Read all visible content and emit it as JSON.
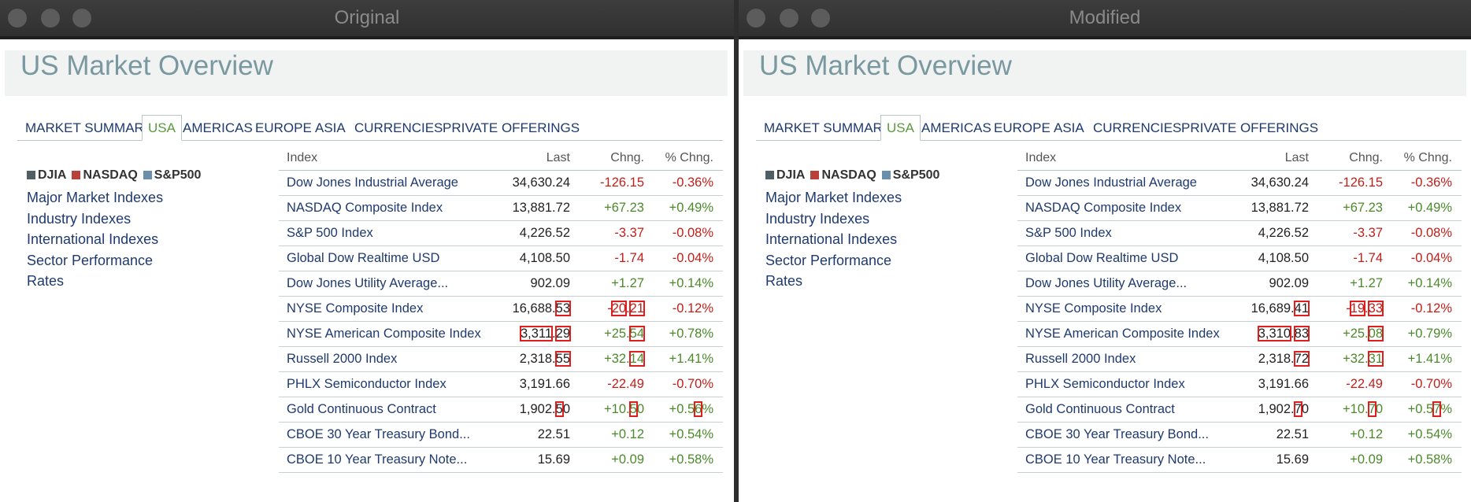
{
  "colors": {
    "accent_green": "#5b9a3c",
    "link_blue": "#1e3a6e",
    "negative_red": "#c0201a",
    "positive_green": "#4a8a2a",
    "diff_box_red": "#e01e1e",
    "djia": "#4f5f64",
    "nasdaq": "#b9413a",
    "sp500": "#6a8faa"
  },
  "panels": [
    {
      "window_title": "Original",
      "page_title": "US Market Overview",
      "tabs": [
        "MARKET SUMMARY",
        "USA",
        "AMERICAS",
        "EUROPE",
        "ASIA",
        "CURRENCIES",
        "PRIVATE OFFERINGS"
      ],
      "legend": [
        "DJIA",
        "NASDAQ",
        "S&P500"
      ],
      "links": [
        "Major Market Indexes",
        "Industry Indexes",
        "International Indexes",
        "Sector Performance",
        "Rates"
      ],
      "columns": {
        "index": "Index",
        "last": "Last",
        "chng": "Chng.",
        "pct": "% Chng."
      },
      "rows": [
        {
          "name": "Dow Jones Industrial Average",
          "last": [
            "34,630.24"
          ],
          "chng": [
            "-126.15"
          ],
          "pct": [
            "-0.36%"
          ],
          "dir": "neg"
        },
        {
          "name": "NASDAQ Composite Index",
          "last": [
            "13,881.72"
          ],
          "chng": [
            "+67.23"
          ],
          "pct": [
            "+0.49%"
          ],
          "dir": "pos"
        },
        {
          "name": "S&P 500 Index",
          "last": [
            "4,226.52"
          ],
          "chng": [
            "-3.37"
          ],
          "pct": [
            "-0.08%"
          ],
          "dir": "neg"
        },
        {
          "name": "Global Dow Realtime USD",
          "last": [
            "4,108.50"
          ],
          "chng": [
            "-1.74"
          ],
          "pct": [
            "-0.04%"
          ],
          "dir": "neg"
        },
        {
          "name": "Dow Jones Utility Average...",
          "last": [
            "902.09"
          ],
          "chng": [
            "+1.27"
          ],
          "pct": [
            "+0.14%"
          ],
          "dir": "pos"
        },
        {
          "name": "NYSE Composite Index",
          "last": [
            "16,68",
            "8.",
            "53"
          ],
          "chng": [
            "-",
            "20",
            ".",
            "21"
          ],
          "pct": [
            "-0.12%"
          ],
          "dir": "neg"
        },
        {
          "name": "NYSE American Composite Index",
          "last": [
            "3,311",
            ".",
            "29"
          ],
          "chng": [
            "+25.",
            "54"
          ],
          "pct": [
            "+0.7",
            "8",
            "%"
          ],
          "dir": "pos"
        },
        {
          "name": "Russell 2000 Index",
          "last": [
            "2,318.",
            "55"
          ],
          "chng": [
            "+32.",
            "14"
          ],
          "pct": [
            "+1.41%"
          ],
          "dir": "pos"
        },
        {
          "name": "PHLX Semiconductor Index",
          "last": [
            "3,191.66"
          ],
          "chng": [
            "-22.49"
          ],
          "pct": [
            "-0.70%"
          ],
          "dir": "neg"
        },
        {
          "name": "Gold Continuous Contract",
          "last": [
            "1,902.",
            "5",
            "0"
          ],
          "chng": [
            "+10.",
            "5",
            "0"
          ],
          "pct": [
            "+0.5",
            "6",
            "%"
          ],
          "dir": "pos"
        },
        {
          "name": "CBOE 30 Year Treasury Bond...",
          "last": [
            "22.51"
          ],
          "chng": [
            "+0.12"
          ],
          "pct": [
            "+0.54%"
          ],
          "dir": "pos"
        },
        {
          "name": "CBOE 10 Year Treasury Note...",
          "last": [
            "15.69"
          ],
          "chng": [
            "+0.09"
          ],
          "pct": [
            "+0.58%"
          ],
          "dir": "pos"
        }
      ]
    },
    {
      "window_title": "Modified",
      "page_title": "US Market Overview",
      "tabs": [
        "MARKET SUMMARY",
        "USA",
        "AMERICAS",
        "EUROPE",
        "ASIA",
        "CURRENCIES",
        "PRIVATE OFFERINGS"
      ],
      "legend": [
        "DJIA",
        "NASDAQ",
        "S&P500"
      ],
      "links": [
        "Major Market Indexes",
        "Industry Indexes",
        "International Indexes",
        "Sector Performance",
        "Rates"
      ],
      "columns": {
        "index": "Index",
        "last": "Last",
        "chng": "Chng.",
        "pct": "% Chng."
      },
      "rows": [
        {
          "name": "Dow Jones Industrial Average",
          "last": [
            "34,630.24"
          ],
          "chng": [
            "-126.15"
          ],
          "pct": [
            "-0.36%"
          ],
          "dir": "neg"
        },
        {
          "name": "NASDAQ Composite Index",
          "last": [
            "13,881.72"
          ],
          "chng": [
            "+67.23"
          ],
          "pct": [
            "+0.49%"
          ],
          "dir": "pos"
        },
        {
          "name": "S&P 500 Index",
          "last": [
            "4,226.52"
          ],
          "chng": [
            "-3.37"
          ],
          "pct": [
            "-0.08%"
          ],
          "dir": "neg"
        },
        {
          "name": "Global Dow Realtime USD",
          "last": [
            "4,108.50"
          ],
          "chng": [
            "-1.74"
          ],
          "pct": [
            "-0.04%"
          ],
          "dir": "neg"
        },
        {
          "name": "Dow Jones Utility Average...",
          "last": [
            "902.09"
          ],
          "chng": [
            "+1.27"
          ],
          "pct": [
            "+0.14%"
          ],
          "dir": "pos"
        },
        {
          "name": "NYSE Composite Index",
          "last": [
            "16,68",
            "9.",
            "41"
          ],
          "chng": [
            "-",
            "19",
            ".",
            "33"
          ],
          "pct": [
            "-0.12%"
          ],
          "dir": "neg"
        },
        {
          "name": "NYSE American Composite Index",
          "last": [
            "3,310",
            ".",
            "83"
          ],
          "chng": [
            "+25.",
            "08"
          ],
          "pct": [
            "+0.7",
            "9",
            "%"
          ],
          "dir": "pos"
        },
        {
          "name": "Russell 2000 Index",
          "last": [
            "2,318.",
            "72"
          ],
          "chng": [
            "+32.",
            "31"
          ],
          "pct": [
            "+1.41%"
          ],
          "dir": "pos"
        },
        {
          "name": "PHLX Semiconductor Index",
          "last": [
            "3,191.66"
          ],
          "chng": [
            "-22.49"
          ],
          "pct": [
            "-0.70%"
          ],
          "dir": "neg"
        },
        {
          "name": "Gold Continuous Contract",
          "last": [
            "1,902.",
            "7",
            "0"
          ],
          "chng": [
            "+10.",
            "7",
            "0"
          ],
          "pct": [
            "+0.5",
            "7",
            "%"
          ],
          "dir": "pos"
        },
        {
          "name": "CBOE 30 Year Treasury Bond...",
          "last": [
            "22.51"
          ],
          "chng": [
            "+0.12"
          ],
          "pct": [
            "+0.54%"
          ],
          "dir": "pos"
        },
        {
          "name": "CBOE 10 Year Treasury Note...",
          "last": [
            "15.69"
          ],
          "chng": [
            "+0.09"
          ],
          "pct": [
            "+0.58%"
          ],
          "dir": "pos"
        }
      ]
    }
  ]
}
